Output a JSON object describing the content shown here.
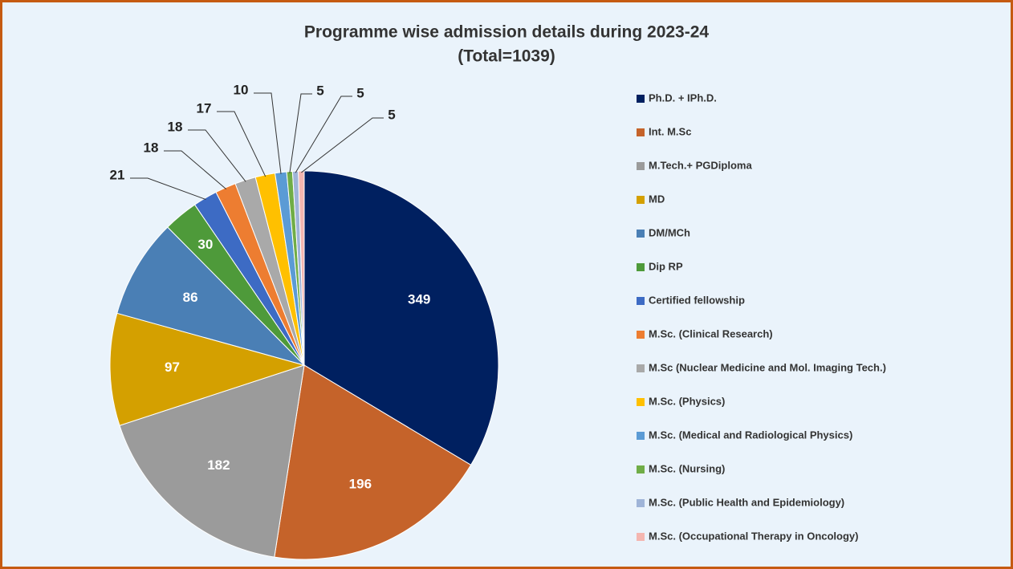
{
  "chart_data": {
    "type": "pie",
    "title": "Programme wise admission details during 2023-24",
    "subtitle": "(Total=1039)",
    "categories": [
      "Ph.D. + IPh.D.",
      "Int. M.Sc",
      "M.Tech.+ PGDiploma",
      "MD",
      "DM/MCh",
      "Dip RP",
      "Certified fellowship",
      "M.Sc. (Clinical Research)",
      "M.Sc (Nuclear Medicine and Mol. Imaging Tech.)",
      "M.Sc. (Physics)",
      "M.Sc. (Medical and Radiological Physics)",
      "M.Sc. (Nursing)",
      "M.Sc. (Public Health and Epidemiology)",
      "M.Sc. (Occupational Therapy in Oncology)"
    ],
    "values": [
      349,
      196,
      182,
      97,
      86,
      30,
      21,
      18,
      18,
      17,
      10,
      5,
      5,
      5
    ],
    "colors": [
      "#002060",
      "#c5632a",
      "#9b9b9b",
      "#d4a000",
      "#4a7fb5",
      "#4e9a3a",
      "#3d6bc4",
      "#ed7d31",
      "#a9a9a9",
      "#ffc000",
      "#5b9bd5",
      "#70ad47",
      "#9fb4d8",
      "#f4b6b0"
    ],
    "legend": "right"
  }
}
